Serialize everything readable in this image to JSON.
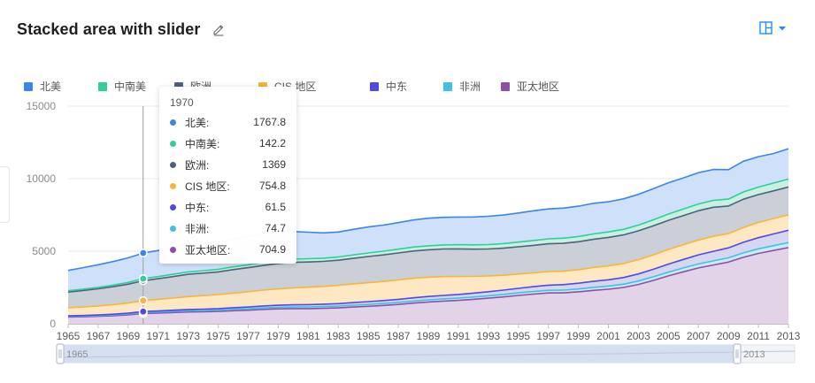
{
  "header": {
    "title": "Stacked area with slider"
  },
  "icons": {
    "edit": "edit-icon",
    "layout": "layout-icon",
    "dropdown": "caret-down-icon"
  },
  "colors": {
    "accent": "#1890ff",
    "series": [
      "#3b86e8",
      "#2ecf9a",
      "#4e6180",
      "#f7b53b",
      "#5148e6",
      "#3fc1e6",
      "#8e4fa8"
    ],
    "fills": [
      "#cfe0fa",
      "#c8f1df",
      "#cbd0d8",
      "#fde8c3",
      "#d6d6f1",
      "#c9ecf5",
      "#e3d3e8"
    ]
  },
  "chart_data": {
    "type": "area",
    "stacked": true,
    "title": "Stacked area with slider",
    "xlabel": "",
    "ylabel": "",
    "ylim": [
      0,
      15000
    ],
    "yticks": [
      "0",
      "5000",
      "10000",
      "15000"
    ],
    "xticks": [
      "1965",
      "1967",
      "1969",
      "1971",
      "1973",
      "1975",
      "1977",
      "1979",
      "1981",
      "1983",
      "1985",
      "1987",
      "1989",
      "1991",
      "1993",
      "1995",
      "1997",
      "1999",
      "2001",
      "2003",
      "2005",
      "2007",
      "2009",
      "2011",
      "2013"
    ],
    "x": [
      1965,
      1966,
      1967,
      1968,
      1969,
      1970,
      1971,
      1972,
      1973,
      1974,
      1975,
      1976,
      1977,
      1978,
      1979,
      1980,
      1981,
      1982,
      1983,
      1984,
      1985,
      1986,
      1987,
      1988,
      1989,
      1990,
      1991,
      1992,
      1993,
      1994,
      1995,
      1996,
      1997,
      1998,
      1999,
      2000,
      2001,
      2002,
      2003,
      2004,
      2005,
      2006,
      2007,
      2008,
      2009,
      2010,
      2011,
      2012,
      2013
    ],
    "legend": [
      "北美",
      "中南美",
      "欧洲",
      "CIS 地区",
      "中东",
      "非洲",
      "亚太地区"
    ],
    "series": [
      {
        "name": "亚太地区",
        "values": [
          458,
          480,
          510,
          555,
          615,
          704.9,
          735,
          775,
          810,
          825,
          850,
          895,
          935,
          990,
          1025,
          1040,
          1045,
          1060,
          1090,
          1150,
          1200,
          1260,
          1330,
          1420,
          1500,
          1560,
          1610,
          1680,
          1760,
          1850,
          1950,
          2040,
          2120,
          2130,
          2200,
          2300,
          2380,
          2500,
          2710,
          2990,
          3300,
          3580,
          3850,
          4050,
          4250,
          4580,
          4850,
          5050,
          5250
        ]
      },
      {
        "name": "非洲",
        "values": [
          46,
          48,
          51,
          54,
          58,
          74.7,
          78,
          82,
          86,
          89,
          92,
          96,
          100,
          104,
          108,
          112,
          116,
          120,
          124,
          128,
          132,
          136,
          140,
          144,
          148,
          152,
          156,
          160,
          165,
          170,
          175,
          180,
          185,
          190,
          195,
          205,
          215,
          225,
          235,
          245,
          255,
          265,
          275,
          285,
          290,
          305,
          315,
          330,
          345
        ]
      },
      {
        "name": "中东",
        "values": [
          40,
          42,
          45,
          48,
          52,
          61.5,
          68,
          76,
          84,
          92,
          100,
          110,
          120,
          132,
          140,
          150,
          158,
          166,
          172,
          180,
          190,
          200,
          210,
          220,
          230,
          240,
          255,
          270,
          285,
          300,
          315,
          335,
          355,
          375,
          395,
          415,
          435,
          460,
          490,
          520,
          555,
          590,
          625,
          660,
          690,
          730,
          770,
          810,
          850
        ]
      },
      {
        "name": "CIS 地区",
        "values": [
          560,
          590,
          620,
          660,
          700,
          754.8,
          800,
          840,
          890,
          930,
          970,
          1010,
          1050,
          1090,
          1130,
          1170,
          1200,
          1230,
          1260,
          1290,
          1310,
          1320,
          1340,
          1350,
          1330,
          1300,
          1240,
          1150,
          1080,
          1020,
          985,
          950,
          940,
          930,
          935,
          950,
          960,
          970,
          980,
          995,
          1010,
          1015,
          1025,
          1035,
          985,
          1020,
          1045,
          1060,
          1060
        ]
      },
      {
        "name": "欧洲",
        "values": [
          1080,
          1130,
          1180,
          1240,
          1300,
          1369,
          1420,
          1480,
          1540,
          1550,
          1560,
          1620,
          1660,
          1700,
          1750,
          1760,
          1740,
          1720,
          1730,
          1760,
          1800,
          1830,
          1860,
          1880,
          1890,
          1900,
          1900,
          1880,
          1860,
          1870,
          1880,
          1900,
          1910,
          1920,
          1930,
          1950,
          1960,
          1970,
          1990,
          2000,
          2010,
          2010,
          2020,
          2000,
          1900,
          1950,
          1920,
          1910,
          1920
        ]
      },
      {
        "name": "中南美",
        "values": [
          90,
          96,
          102,
          110,
          120,
          142.2,
          150,
          158,
          166,
          174,
          182,
          190,
          198,
          206,
          214,
          220,
          222,
          224,
          230,
          238,
          246,
          254,
          262,
          270,
          276,
          282,
          290,
          298,
          306,
          314,
          322,
          332,
          342,
          352,
          358,
          368,
          378,
          384,
          396,
          412,
          430,
          446,
          462,
          476,
          474,
          498,
          518,
          534,
          552
        ]
      },
      {
        "name": "北美",
        "values": [
          1400,
          1480,
          1560,
          1620,
          1700,
          1767.8,
          1800,
          1880,
          1950,
          1900,
          1870,
          1920,
          1970,
          2000,
          1980,
          1900,
          1830,
          1740,
          1720,
          1760,
          1790,
          1800,
          1830,
          1870,
          1900,
          1900,
          1900,
          1920,
          1950,
          1970,
          2010,
          2050,
          2060,
          2070,
          2090,
          2110,
          2080,
          2100,
          2120,
          2150,
          2160,
          2150,
          2160,
          2130,
          2030,
          2120,
          2100,
          2040,
          2090
        ]
      }
    ],
    "tooltip": {
      "year": "1970",
      "rows": [
        {
          "name": "北美:",
          "value": "1767.8"
        },
        {
          "name": "中南美:",
          "value": "142.2"
        },
        {
          "name": "欧洲:",
          "value": "1369"
        },
        {
          "name": "CIS 地区:",
          "value": "754.8"
        },
        {
          "name": "中东:",
          "value": "61.5"
        },
        {
          "name": "非洲:",
          "value": "74.7"
        },
        {
          "name": "亚太地区:",
          "value": "704.9"
        }
      ]
    },
    "slider": {
      "start": "1965",
      "end": "2013"
    }
  }
}
